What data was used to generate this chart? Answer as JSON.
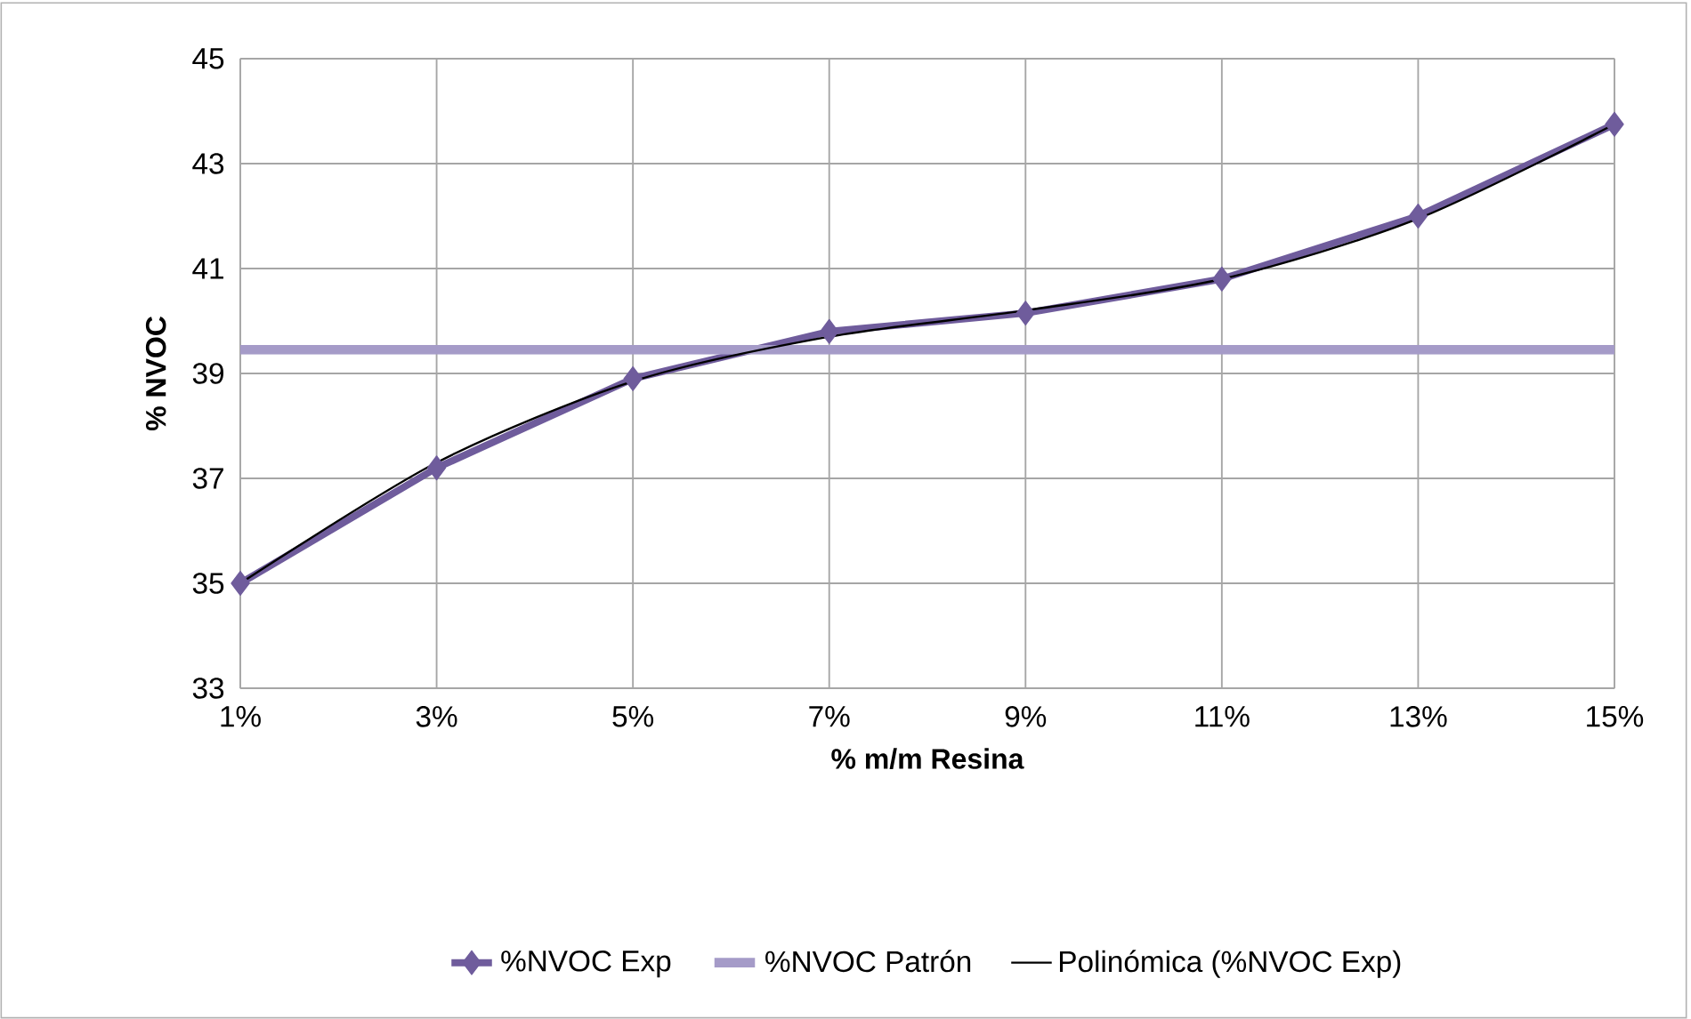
{
  "chart_data": {
    "type": "line",
    "xlabel": "% m/m Resina",
    "ylabel": "% NVOC",
    "categories": [
      "1%",
      "3%",
      "5%",
      "7%",
      "9%",
      "11%",
      "13%",
      "15%"
    ],
    "ylim": [
      33,
      45
    ],
    "yticks": [
      33,
      35,
      37,
      39,
      41,
      43,
      45
    ],
    "grid": true,
    "legend": "bottom",
    "series": [
      {
        "name": "%NVOC Exp",
        "color": "#6f5c9c",
        "marker": "diamond",
        "values": [
          35.0,
          37.2,
          38.9,
          39.8,
          40.15,
          40.8,
          42.0,
          43.75
        ]
      },
      {
        "name": "%NVOC Patrón",
        "color": "#a59bc8",
        "marker": "none",
        "values": [
          39.45,
          39.45,
          39.45,
          39.45,
          39.45,
          39.45,
          39.45,
          39.45
        ]
      },
      {
        "name": "Polinómica (%NVOC Exp)",
        "color": "#000000",
        "marker": "none",
        "values": [
          35.0,
          37.3,
          38.85,
          39.7,
          40.2,
          40.8,
          41.95,
          43.75
        ]
      }
    ]
  }
}
